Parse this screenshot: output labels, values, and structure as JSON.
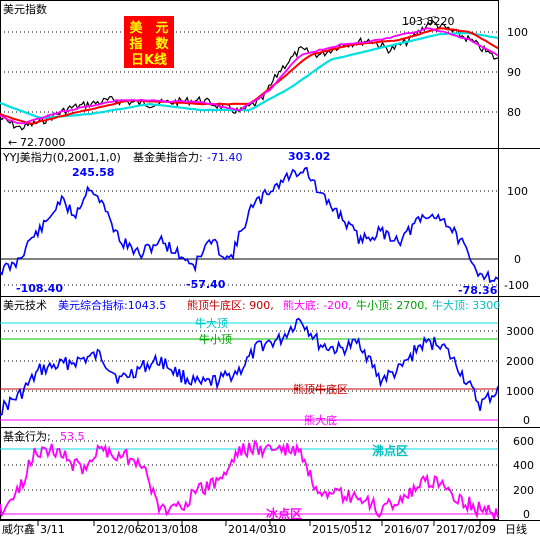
{
  "panel1": {
    "title": "美元指数",
    "badge": [
      "美　元",
      "指　数",
      "日K线"
    ],
    "peak_label": "103.8220",
    "low_label": "72.7000",
    "y_ticks": [
      "100",
      "90",
      "80"
    ]
  },
  "panel2": {
    "header_name": "YYJ美指力(0,2001,1,0)",
    "header_sub": "基金美指合力:",
    "header_value": "-71.40",
    "annotations": [
      "245.58",
      "303.02",
      "-108.40",
      "-57.40",
      "-78.36"
    ],
    "y_ticks": [
      "100",
      "0",
      "-100"
    ]
  },
  "panel3": {
    "header_name": "美元技术",
    "header_sub": "美元综合指标:1043.5",
    "header_p1": "熊顶牛底区: 900,",
    "header_p2": "熊大底: -200,",
    "header_p3": "牛小顶: 2700,",
    "header_p4": "牛大顶: 3300",
    "line_labels": [
      "牛大顶",
      "牛小顶",
      "熊顶牛底区",
      "熊大底"
    ],
    "y_ticks": [
      "3000",
      "2000",
      "1000",
      "0"
    ]
  },
  "panel4": {
    "header_name": "基金行为:",
    "header_value": "53.5",
    "zone_labels": [
      "沸点区",
      "冰点区"
    ],
    "y_ticks": [
      "600",
      "400",
      "200",
      "0"
    ]
  },
  "footer": {
    "brand": "威尔鑫",
    "dates": [
      "3/11",
      "2012/06",
      "2013/01",
      "08",
      "2014/03",
      "10",
      "2015/05",
      "12",
      "2016/07",
      "2017/02",
      "09"
    ],
    "period": "日线"
  },
  "colors": {
    "price": "#000000",
    "ma_red": "#ff0000",
    "ma_magenta": "#ff00ff",
    "ma_cyan": "#00e0e0",
    "blue_line": "#0000ff",
    "magenta_line": "#ff00ff",
    "zero_line": "#000000",
    "top_line": "#00e0e0",
    "small_top_line": "#00c000",
    "mid_line": "#c00000",
    "bottom_line": "#ff00ff"
  }
}
